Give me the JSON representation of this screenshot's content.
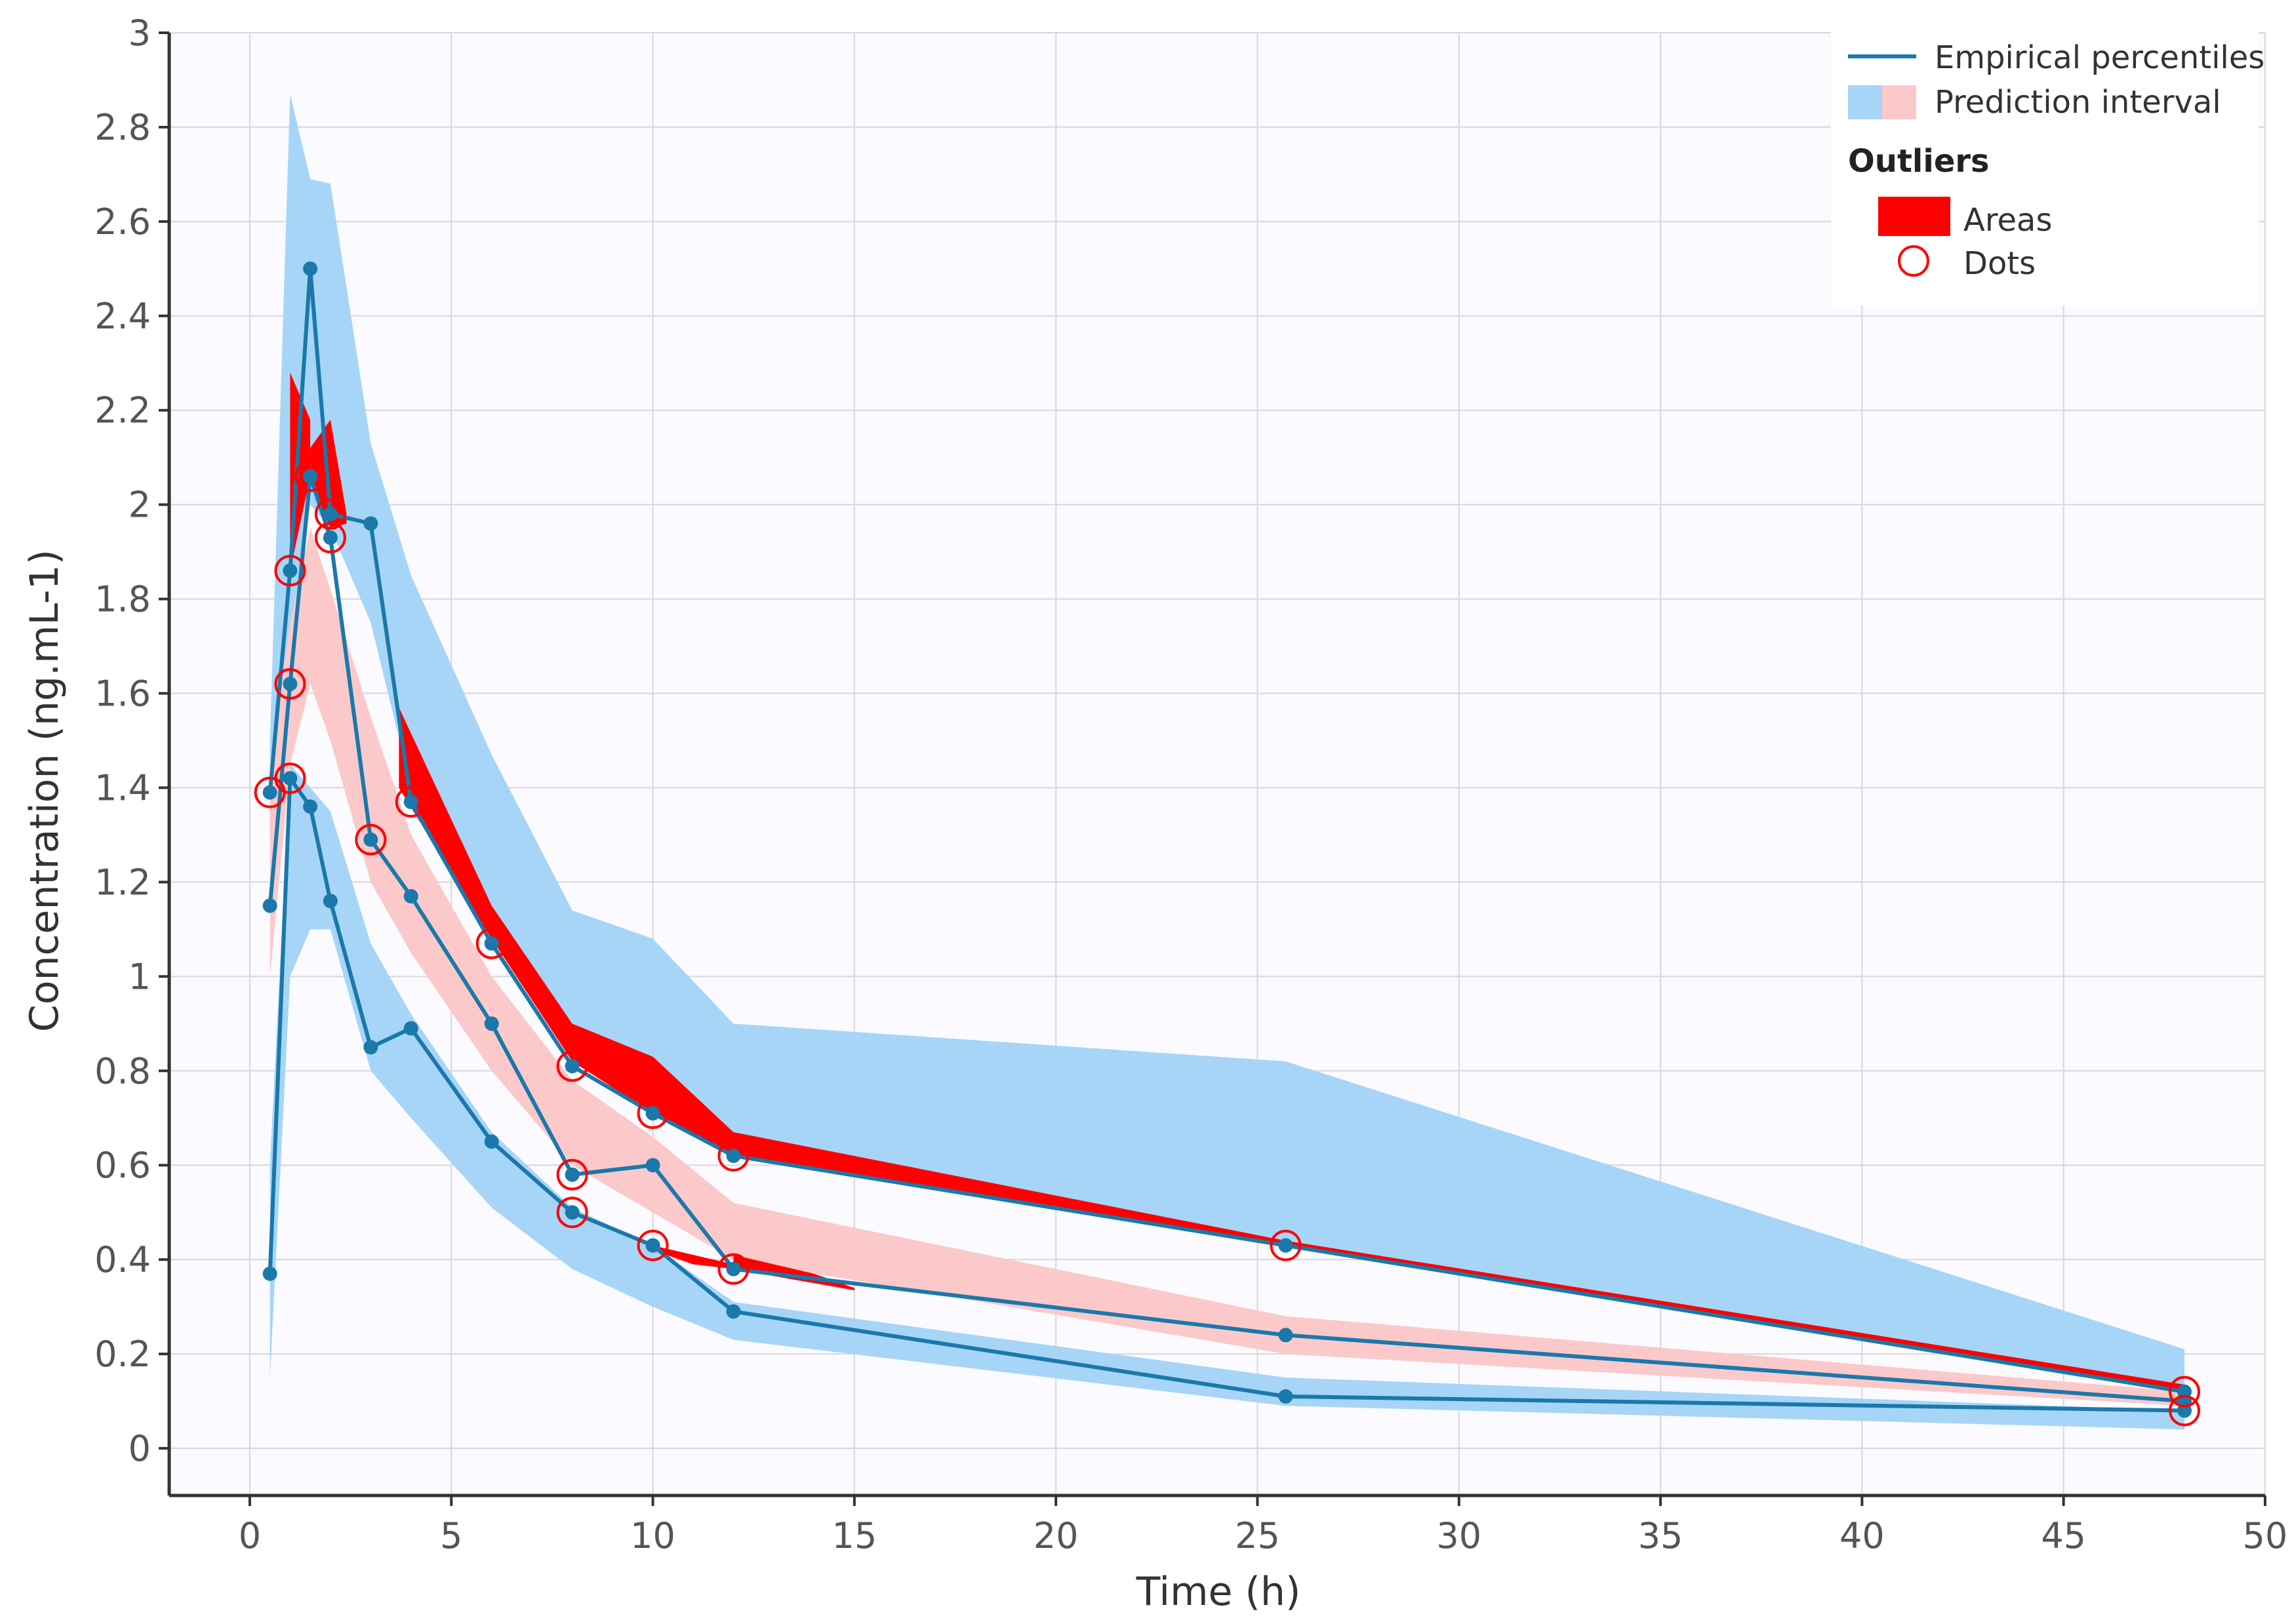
{
  "chart_data": {
    "type": "line",
    "title": "",
    "xlabel": "Time (h)",
    "ylabel": "Concentration (ng.mL-1)",
    "xlim": [
      -2,
      50
    ],
    "ylim": [
      -0.1,
      3
    ],
    "x_ticks": [
      0,
      5,
      10,
      15,
      20,
      25,
      30,
      35,
      40,
      45,
      50
    ],
    "y_ticks": [
      0,
      0.2,
      0.4,
      0.6,
      0.8,
      1,
      1.2,
      1.4,
      1.6,
      1.8,
      2,
      2.2,
      2.4,
      2.6,
      2.8,
      3
    ],
    "x_tick_labels": [
      "0",
      "5",
      "10",
      "15",
      "20",
      "25",
      "30",
      "35",
      "40",
      "45",
      "50"
    ],
    "y_tick_labels": [
      "0",
      "0.2",
      "0.4",
      "0.6",
      "0.8",
      "1",
      "1.2",
      "1.4",
      "1.6",
      "1.8",
      "2",
      "2.2",
      "2.4",
      "2.6",
      "2.8",
      "3"
    ],
    "grid": true,
    "colors": {
      "line": "#1a78aa",
      "band_outer": "#a6d5f7",
      "band_median": "#fbc9c9",
      "outlier": "#ff0000",
      "plot_bg": "#fafaff",
      "grid": "#d8d8d8"
    },
    "prediction_bands": [
      {
        "name": "upper percentile interval",
        "color": "band_outer",
        "points": [
          [
            0.5,
            1.3,
            1.5
          ],
          [
            1,
            1.7,
            2.87
          ],
          [
            1.5,
            2.0,
            2.69
          ],
          [
            2,
            1.95,
            2.68
          ],
          [
            3,
            1.75,
            2.13
          ],
          [
            4,
            1.4,
            1.85
          ],
          [
            6,
            1.1,
            1.47
          ],
          [
            8,
            0.85,
            1.14
          ],
          [
            10,
            0.76,
            1.08
          ],
          [
            12,
            0.65,
            0.9
          ],
          [
            25.7,
            0.43,
            0.82
          ],
          [
            48,
            0.13,
            0.21
          ]
        ]
      },
      {
        "name": "median interval",
        "color": "band_median",
        "points": [
          [
            0.5,
            1.0,
            1.45
          ],
          [
            1,
            1.45,
            1.75
          ],
          [
            1.5,
            1.62,
            1.95
          ],
          [
            2,
            1.5,
            1.82
          ],
          [
            3,
            1.2,
            1.55
          ],
          [
            4,
            1.05,
            1.3
          ],
          [
            6,
            0.8,
            1.0
          ],
          [
            8,
            0.6,
            0.78
          ],
          [
            10,
            0.5,
            0.66
          ],
          [
            12,
            0.4,
            0.52
          ],
          [
            25.7,
            0.2,
            0.28
          ],
          [
            48,
            0.09,
            0.12
          ]
        ]
      },
      {
        "name": "lower percentile interval",
        "color": "band_outer",
        "points": [
          [
            0.5,
            0.15,
            0.6
          ],
          [
            1,
            1.0,
            1.45
          ],
          [
            1.5,
            1.1,
            1.4
          ],
          [
            2,
            1.1,
            1.35
          ],
          [
            3,
            0.8,
            1.07
          ],
          [
            4,
            0.7,
            0.92
          ],
          [
            6,
            0.51,
            0.67
          ],
          [
            8,
            0.38,
            0.51
          ],
          [
            10,
            0.3,
            0.43
          ],
          [
            12,
            0.23,
            0.31
          ],
          [
            25.7,
            0.09,
            0.15
          ],
          [
            48,
            0.04,
            0.08
          ]
        ]
      }
    ],
    "outlier_areas": [
      {
        "name": "upper outlier area 1",
        "points": [
          [
            1.0,
            1.86,
            2.28
          ],
          [
            1.5,
            2.06,
            2.18
          ]
        ]
      },
      {
        "name": "upper outlier area 2",
        "points": [
          [
            1.5,
            2.05,
            2.12
          ],
          [
            2.0,
            1.95,
            2.18
          ],
          [
            2.4,
            1.96,
            1.98
          ]
        ]
      },
      {
        "name": "upper outlier area 3",
        "points": [
          [
            3.7,
            1.4,
            1.57
          ],
          [
            6,
            1.08,
            1.15
          ],
          [
            8,
            0.82,
            0.9
          ],
          [
            10,
            0.71,
            0.83
          ],
          [
            12,
            0.62,
            0.67
          ],
          [
            25.7,
            0.43,
            0.44
          ],
          [
            48,
            0.12,
            0.135
          ]
        ]
      },
      {
        "name": "median outlier area",
        "points": [
          [
            12,
            0.38,
            0.41
          ],
          [
            14,
            0.35,
            0.37
          ],
          [
            15,
            0.335,
            0.34
          ]
        ]
      },
      {
        "name": "lower median outlier area",
        "points": [
          [
            10,
            0.42,
            0.43
          ],
          [
            11,
            0.39,
            0.41
          ],
          [
            12,
            0.38,
            0.39
          ]
        ]
      }
    ],
    "series": [
      {
        "name": "Upper empirical percentile",
        "x": [
          0.5,
          1,
          1.5,
          2,
          3,
          4,
          6,
          8,
          10,
          12,
          25.7,
          48
        ],
        "y": [
          1.39,
          1.86,
          2.5,
          1.98,
          1.96,
          1.37,
          1.07,
          0.81,
          0.71,
          0.62,
          0.43,
          0.12
        ]
      },
      {
        "name": "Median empirical percentile",
        "x": [
          0.5,
          1,
          1.5,
          2,
          3,
          4,
          6,
          8,
          10,
          12,
          25.7,
          48
        ],
        "y": [
          1.15,
          1.62,
          2.06,
          1.93,
          1.29,
          1.17,
          0.9,
          0.58,
          0.6,
          0.38,
          0.24,
          0.1
        ]
      },
      {
        "name": "Lower empirical percentile",
        "x": [
          0.5,
          1,
          1.5,
          2,
          3,
          4,
          6,
          8,
          10,
          12,
          25.7,
          48
        ],
        "y": [
          0.37,
          1.42,
          1.36,
          1.16,
          0.85,
          0.89,
          0.65,
          0.5,
          0.43,
          0.29,
          0.11,
          0.08
        ]
      }
    ],
    "outlier_dots": [
      [
        0.5,
        1.39
      ],
      [
        1,
        1.86
      ],
      [
        1,
        1.62
      ],
      [
        1,
        1.42
      ],
      [
        1.5,
        2.06
      ],
      [
        2,
        1.98
      ],
      [
        2,
        1.93
      ],
      [
        3,
        1.29
      ],
      [
        4,
        1.37
      ],
      [
        6,
        1.07
      ],
      [
        8,
        0.81
      ],
      [
        8,
        0.58
      ],
      [
        8,
        0.5
      ],
      [
        10,
        0.71
      ],
      [
        10,
        0.43
      ],
      [
        12,
        0.62
      ],
      [
        12,
        0.38
      ],
      [
        25.7,
        0.43
      ],
      [
        48,
        0.12
      ],
      [
        48,
        0.08
      ]
    ],
    "legend": {
      "position": "top-right",
      "line_label": "Empirical percentiles",
      "band_label": "Prediction interval",
      "outliers_heading": "Outliers",
      "areas_label": "Areas",
      "dots_label": "Dots"
    }
  }
}
